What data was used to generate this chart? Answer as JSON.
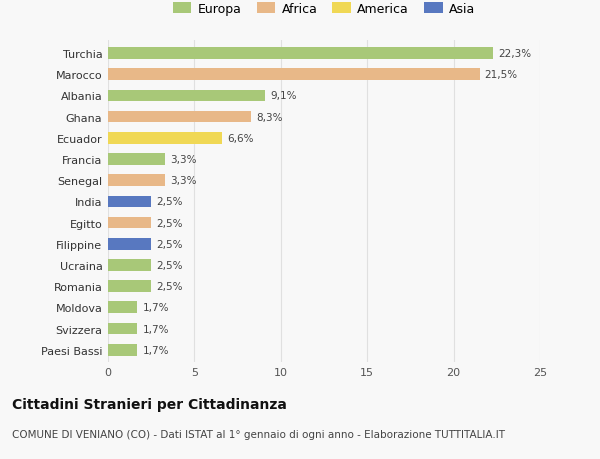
{
  "countries": [
    "Turchia",
    "Marocco",
    "Albania",
    "Ghana",
    "Ecuador",
    "Francia",
    "Senegal",
    "India",
    "Egitto",
    "Filippine",
    "Ucraina",
    "Romania",
    "Moldova",
    "Svizzera",
    "Paesi Bassi"
  ],
  "values": [
    22.3,
    21.5,
    9.1,
    8.3,
    6.6,
    3.3,
    3.3,
    2.5,
    2.5,
    2.5,
    2.5,
    2.5,
    1.7,
    1.7,
    1.7
  ],
  "labels": [
    "22,3%",
    "21,5%",
    "9,1%",
    "8,3%",
    "6,6%",
    "3,3%",
    "3,3%",
    "2,5%",
    "2,5%",
    "2,5%",
    "2,5%",
    "2,5%",
    "1,7%",
    "1,7%",
    "1,7%"
  ],
  "continents": [
    "Europa",
    "Africa",
    "Europa",
    "Africa",
    "America",
    "Europa",
    "Africa",
    "Asia",
    "Africa",
    "Asia",
    "Europa",
    "Europa",
    "Europa",
    "Europa",
    "Europa"
  ],
  "colors": {
    "Europa": "#a8c878",
    "Africa": "#e8b888",
    "America": "#f0d855",
    "Asia": "#5878c0"
  },
  "legend_order": [
    "Europa",
    "Africa",
    "America",
    "Asia"
  ],
  "xlim": [
    0,
    25
  ],
  "xticks": [
    0,
    5,
    10,
    15,
    20,
    25
  ],
  "title": "Cittadini Stranieri per Cittadinanza",
  "subtitle": "COMUNE DI VENIANO (CO) - Dati ISTAT al 1° gennaio di ogni anno - Elaborazione TUTTITALIA.IT",
  "background_color": "#f8f8f8",
  "grid_color": "#e0e0e0",
  "bar_height": 0.55
}
